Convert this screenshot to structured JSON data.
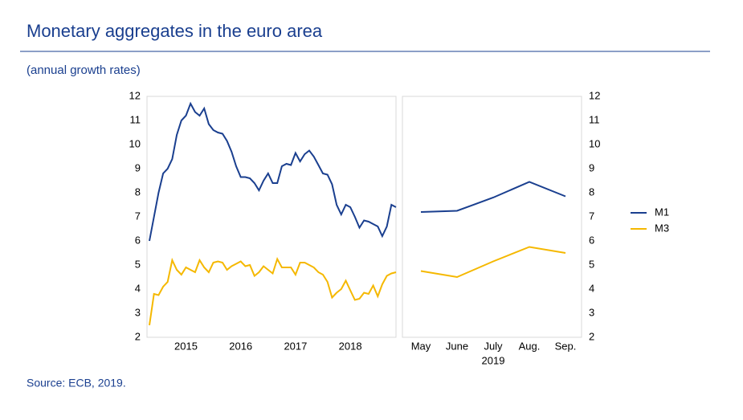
{
  "header": {
    "title": "Monetary aggregates in the euro area",
    "subtitle": "(annual growth rates)"
  },
  "source": "Source: ECB, 2019.",
  "chart_data": [
    {
      "type": "line",
      "categories": [
        null,
        null,
        null,
        null,
        null,
        null,
        null,
        null,
        "2015",
        null,
        null,
        null,
        null,
        null,
        null,
        null,
        null,
        null,
        null,
        null,
        "2016",
        null,
        null,
        null,
        null,
        null,
        null,
        null,
        null,
        null,
        null,
        null,
        "2017",
        null,
        null,
        null,
        null,
        null,
        null,
        null,
        null,
        null,
        null,
        null,
        "2018",
        null,
        null,
        null,
        null,
        null,
        null,
        null,
        null,
        null,
        null
      ],
      "series": [
        {
          "name": "M1",
          "color": "#1a3f8f",
          "values": [
            6.0,
            7.0,
            8.0,
            8.8,
            9.0,
            9.4,
            10.4,
            11.0,
            11.2,
            11.7,
            11.35,
            11.2,
            11.5,
            10.85,
            10.6,
            10.5,
            10.45,
            10.15,
            9.7,
            9.1,
            8.65,
            8.65,
            8.6,
            8.4,
            8.1,
            8.5,
            8.8,
            8.4,
            8.4,
            9.1,
            9.2,
            9.15,
            9.65,
            9.3,
            9.6,
            9.75,
            9.5,
            9.15,
            8.8,
            8.75,
            8.35,
            7.5,
            7.1,
            7.5,
            7.4,
            7.0,
            6.55,
            6.85,
            6.8,
            6.7,
            6.6,
            6.2,
            6.6,
            7.5,
            7.4
          ]
        },
        {
          "name": "M3",
          "color": "#f5b800",
          "values": [
            2.5,
            3.8,
            3.75,
            4.1,
            4.3,
            5.2,
            4.8,
            4.6,
            4.9,
            4.8,
            4.7,
            5.2,
            4.9,
            4.7,
            5.1,
            5.15,
            5.1,
            4.8,
            4.95,
            5.05,
            5.15,
            4.95,
            5.0,
            4.55,
            4.7,
            4.95,
            4.8,
            4.65,
            5.25,
            4.9,
            4.9,
            4.9,
            4.6,
            5.1,
            5.1,
            5.0,
            4.9,
            4.7,
            4.6,
            4.3,
            3.65,
            3.85,
            4.0,
            4.35,
            3.95,
            3.55,
            3.6,
            3.85,
            3.8,
            4.15,
            3.7,
            4.2,
            4.55,
            4.65,
            4.7
          ]
        }
      ],
      "ylim": [
        2,
        12
      ],
      "yticks": [
        2,
        3,
        4,
        5,
        6,
        7,
        8,
        9,
        10,
        11,
        12
      ],
      "grid": false
    },
    {
      "type": "line",
      "categories": [
        "May",
        "June",
        "July",
        "Aug.",
        "Sep."
      ],
      "year": "2019",
      "series": [
        {
          "name": "M1",
          "color": "#1a3f8f",
          "values": [
            7.2,
            7.25,
            7.8,
            8.45,
            7.85
          ]
        },
        {
          "name": "M3",
          "color": "#f5b800",
          "values": [
            4.75,
            4.5,
            5.15,
            5.75,
            5.5
          ]
        }
      ],
      "ylim": [
        2,
        12
      ],
      "yticks": [
        2,
        3,
        4,
        5,
        6,
        7,
        8,
        9,
        10,
        11,
        12
      ],
      "grid": false,
      "legend": "right"
    }
  ]
}
